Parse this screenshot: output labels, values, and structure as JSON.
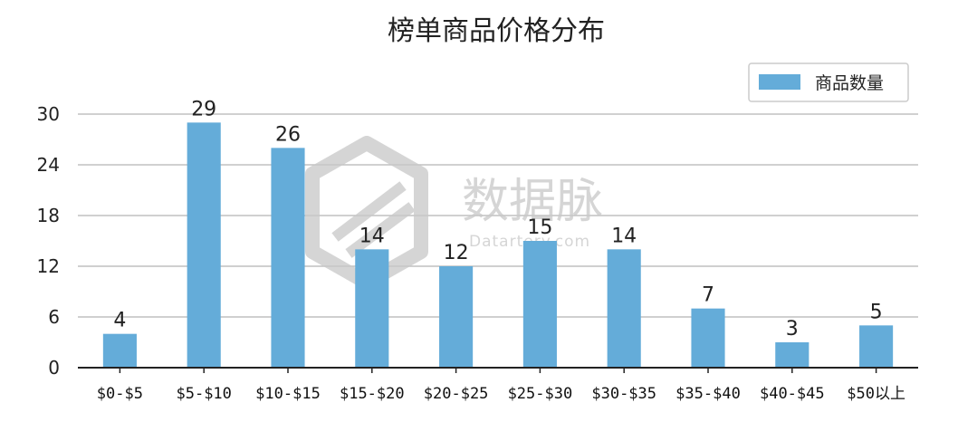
{
  "chart_data": {
    "type": "bar",
    "title": "榜单商品价格分布",
    "categories": [
      "$0-$5",
      "$5-$10",
      "$10-$15",
      "$15-$20",
      "$20-$25",
      "$25-$30",
      "$30-$35",
      "$35-$40",
      "$40-$45",
      "$50以上"
    ],
    "series": [
      {
        "name": "商品数量",
        "values": [
          4,
          29,
          26,
          14,
          12,
          15,
          14,
          7,
          3,
          5
        ],
        "color": "#64acd9"
      }
    ],
    "yticks": [
      "0",
      "6",
      "12",
      "18",
      "24",
      "30"
    ],
    "ylim": [
      0,
      30
    ],
    "grid": true,
    "legend_position": "top-right",
    "data_labels": true
  },
  "watermark": {
    "text": "数据脉",
    "subtext": "Datartery.com",
    "color": "#c8c8c8"
  }
}
